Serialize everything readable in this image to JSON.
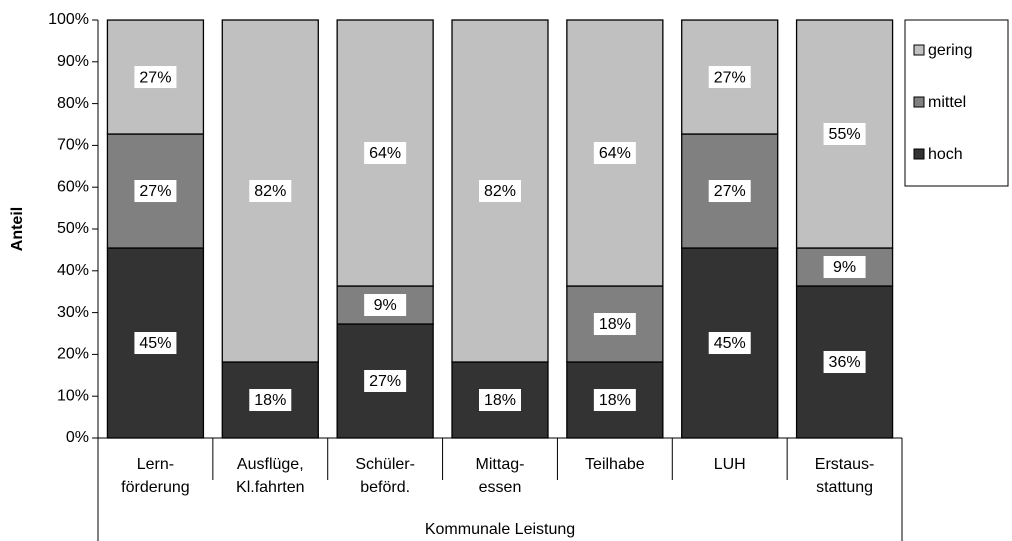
{
  "chart_data": {
    "type": "stacked_bar",
    "y_label": "Anteil",
    "x_label": "Kommunale Leistung",
    "categories": [
      [
        "Lern-",
        "förderung"
      ],
      [
        "Ausflüge,",
        "Kl.fahrten"
      ],
      [
        "Schüler-",
        "beförd."
      ],
      [
        "Mittag-",
        "essen"
      ],
      [
        "Teilhabe"
      ],
      [
        "LUH"
      ],
      [
        "Erstaus-",
        "stattung"
      ]
    ],
    "series": [
      {
        "name": "hoch",
        "color": "#333333",
        "values": [
          45.45,
          18.18,
          27.27,
          18.18,
          18.18,
          45.45,
          36.36
        ],
        "value_labels": [
          "45%",
          "18%",
          "27%",
          "18%",
          "18%",
          "45%",
          "36%"
        ]
      },
      {
        "name": "mittel",
        "color": "#808080",
        "values": [
          27.27,
          0,
          9.09,
          0,
          18.18,
          27.27,
          9.09
        ],
        "value_labels": [
          "27%",
          null,
          "9%",
          null,
          "18%",
          "27%",
          "9%"
        ]
      },
      {
        "name": "gering",
        "color": "#c0c0c0",
        "values": [
          27.27,
          81.82,
          63.64,
          81.82,
          63.64,
          27.27,
          54.55
        ],
        "value_labels": [
          "27%",
          "82%",
          "64%",
          "82%",
          "64%",
          "27%",
          "55%"
        ]
      }
    ],
    "ylim": [
      0,
      100
    ],
    "yticks": [
      {
        "value": 0,
        "label": "0%"
      },
      {
        "value": 10,
        "label": "10%"
      },
      {
        "value": 20,
        "label": "20%"
      },
      {
        "value": 30,
        "label": "30%"
      },
      {
        "value": 40,
        "label": "40%"
      },
      {
        "value": 50,
        "label": "50%"
      },
      {
        "value": 60,
        "label": "60%"
      },
      {
        "value": 70,
        "label": "70%"
      },
      {
        "value": 80,
        "label": "80%"
      },
      {
        "value": 90,
        "label": "90%"
      },
      {
        "value": 100,
        "label": "100%"
      }
    ],
    "legend": "right"
  }
}
